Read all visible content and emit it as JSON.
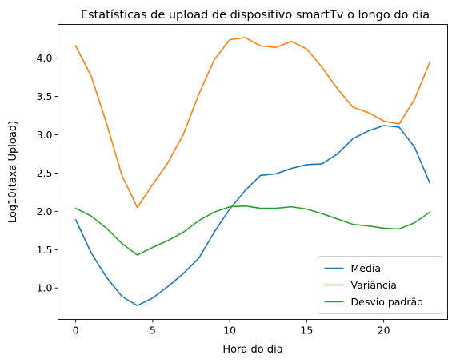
{
  "chart_data": {
    "type": "line",
    "title": "Estatísticas de upload de dispositivo smartTv o longo do dia",
    "xlabel": "Hora do dia",
    "ylabel": "Log10(taxa Upload)",
    "xlim": [
      -1.15,
      24.15
    ],
    "ylim": [
      0.59,
      4.44
    ],
    "xticks": [
      0,
      5,
      10,
      15,
      20
    ],
    "yticks": [
      1.0,
      1.5,
      2.0,
      2.5,
      3.0,
      3.5,
      4.0
    ],
    "grid": false,
    "legend_position": "lower-right",
    "x": [
      0,
      1,
      2,
      3,
      4,
      5,
      6,
      7,
      8,
      9,
      10,
      11,
      12,
      13,
      14,
      15,
      16,
      17,
      18,
      19,
      20,
      21,
      22,
      23
    ],
    "series": [
      {
        "name": "Media",
        "color": "#1f77b4",
        "values": [
          1.89,
          1.46,
          1.14,
          0.89,
          0.77,
          0.87,
          1.02,
          1.19,
          1.39,
          1.73,
          2.03,
          2.27,
          2.47,
          2.49,
          2.56,
          2.61,
          2.62,
          2.75,
          2.95,
          3.05,
          3.12,
          3.1,
          2.84,
          2.37
        ]
      },
      {
        "name": "Variância",
        "color": "#ff7f0e",
        "values": [
          4.16,
          3.77,
          3.15,
          2.47,
          2.05,
          2.35,
          2.64,
          3.01,
          3.53,
          3.98,
          4.24,
          4.27,
          4.16,
          4.14,
          4.22,
          4.12,
          3.88,
          3.6,
          3.36,
          3.29,
          3.18,
          3.14,
          3.46,
          3.95
        ]
      },
      {
        "name": "Desvio padrão",
        "color": "#2ca02c",
        "values": [
          2.04,
          1.94,
          1.78,
          1.58,
          1.43,
          1.53,
          1.62,
          1.73,
          1.88,
          1.99,
          2.06,
          2.07,
          2.04,
          2.04,
          2.06,
          2.03,
          1.97,
          1.9,
          1.83,
          1.81,
          1.78,
          1.77,
          1.85,
          1.99
        ]
      }
    ]
  }
}
